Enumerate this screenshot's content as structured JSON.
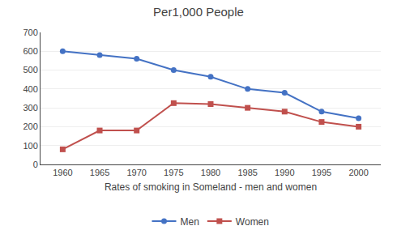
{
  "chart_data": {
    "type": "line",
    "title": "Per1,000 People",
    "xlabel": "Rates of smoking in Someland - men and women",
    "x": [
      1960,
      1965,
      1970,
      1975,
      1980,
      1985,
      1990,
      1995,
      2000
    ],
    "series": [
      {
        "name": "Men",
        "color": "#4472C4",
        "marker": "circle",
        "values": [
          600,
          580,
          560,
          500,
          465,
          400,
          380,
          280,
          245
        ]
      },
      {
        "name": "Women",
        "color": "#C0504D",
        "marker": "square",
        "values": [
          80,
          180,
          180,
          325,
          320,
          300,
          280,
          225,
          200
        ]
      }
    ],
    "xlim": [
      1957,
      2003
    ],
    "xticks": [
      1960,
      1965,
      1970,
      1975,
      1980,
      1985,
      1990,
      1995,
      2000
    ],
    "ylim": [
      0,
      700
    ],
    "yticks": [
      0,
      100,
      200,
      300,
      400,
      500,
      600,
      700
    ],
    "grid": "y",
    "legend": "bottom"
  }
}
